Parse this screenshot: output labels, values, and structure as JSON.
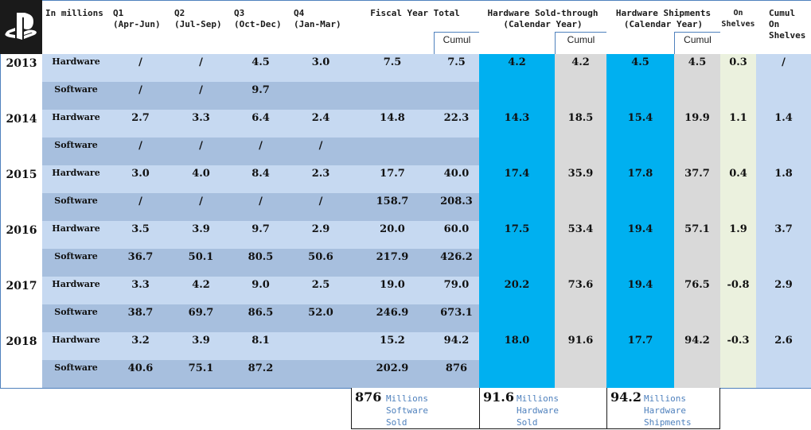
{
  "header": {
    "logo": "playstation-logo",
    "unit": "In millions",
    "q1": [
      "Q1",
      "(Apr-Jun)"
    ],
    "q2": [
      "Q2",
      "(Jul-Sep)"
    ],
    "q3": [
      "Q3",
      "(Oct-Dec)"
    ],
    "q4": [
      "Q4",
      "(Jan-Mar)"
    ],
    "fiscal_year_total": "Fiscal Year Total",
    "hw_sold_through": [
      "Hardware Sold-through",
      "(Calendar Year)"
    ],
    "hw_shipments": [
      "Hardware Shipments",
      "(Calendar Year)"
    ],
    "on_shelves": [
      "On",
      "Shelves"
    ],
    "cumul_on_shelves": [
      "Cumul",
      "On",
      "Shelves"
    ],
    "cumul": "Cumul"
  },
  "colors": {
    "hardware_row": "#c6d9f1",
    "software_row": "#a7bfde",
    "sold_through": "#00b0f0",
    "cumul_grey": "#d9d9d9",
    "on_shelves": "#ebf1de",
    "border": "#4f81bd"
  },
  "rows": [
    {
      "year": "2013",
      "hardware": {
        "label": "Hardware",
        "q1": "/",
        "q2": "/",
        "q3": "4.5",
        "q4": "3.0",
        "fy": "7.5",
        "fy_cumul": "7.5"
      },
      "software": {
        "label": "Software",
        "q1": "/",
        "q2": "/",
        "q3": "9.7",
        "q4": "",
        "fy": "",
        "fy_cumul": ""
      },
      "sold_through": "4.2",
      "sold_through_cumul": "4.2",
      "shipments": "4.5",
      "shipments_cumul": "4.5",
      "on_shelves": "0.3",
      "cumul_on_shelves": "/"
    },
    {
      "year": "2014",
      "hardware": {
        "label": "Hardware",
        "q1": "2.7",
        "q2": "3.3",
        "q3": "6.4",
        "q4": "2.4",
        "fy": "14.8",
        "fy_cumul": "22.3"
      },
      "software": {
        "label": "Software",
        "q1": "/",
        "q2": "/",
        "q3": "/",
        "q4": "/",
        "fy": "",
        "fy_cumul": ""
      },
      "sold_through": "14.3",
      "sold_through_cumul": "18.5",
      "shipments": "15.4",
      "shipments_cumul": "19.9",
      "on_shelves": "1.1",
      "cumul_on_shelves": "1.4"
    },
    {
      "year": "2015",
      "hardware": {
        "label": "Hardware",
        "q1": "3.0",
        "q2": "4.0",
        "q3": "8.4",
        "q4": "2.3",
        "fy": "17.7",
        "fy_cumul": "40.0"
      },
      "software": {
        "label": "Software",
        "q1": "/",
        "q2": "/",
        "q3": "/",
        "q4": "/",
        "fy": "158.7",
        "fy_cumul": "208.3"
      },
      "sold_through": "17.4",
      "sold_through_cumul": "35.9",
      "shipments": "17.8",
      "shipments_cumul": "37.7",
      "on_shelves": "0.4",
      "cumul_on_shelves": "1.8"
    },
    {
      "year": "2016",
      "hardware": {
        "label": "Hardware",
        "q1": "3.5",
        "q2": "3.9",
        "q3": "9.7",
        "q4": "2.9",
        "fy": "20.0",
        "fy_cumul": "60.0"
      },
      "software": {
        "label": "Software",
        "q1": "36.7",
        "q2": "50.1",
        "q3": "80.5",
        "q4": "50.6",
        "fy": "217.9",
        "fy_cumul": "426.2"
      },
      "sold_through": "17.5",
      "sold_through_cumul": "53.4",
      "shipments": "19.4",
      "shipments_cumul": "57.1",
      "on_shelves": "1.9",
      "cumul_on_shelves": "3.7"
    },
    {
      "year": "2017",
      "hardware": {
        "label": "Hardware",
        "q1": "3.3",
        "q2": "4.2",
        "q3": "9.0",
        "q4": "2.5",
        "fy": "19.0",
        "fy_cumul": "79.0"
      },
      "software": {
        "label": "Software",
        "q1": "38.7",
        "q2": "69.7",
        "q3": "86.5",
        "q4": "52.0",
        "fy": "246.9",
        "fy_cumul": "673.1"
      },
      "sold_through": "20.2",
      "sold_through_cumul": "73.6",
      "shipments": "19.4",
      "shipments_cumul": "76.5",
      "on_shelves": "-0.8",
      "cumul_on_shelves": "2.9"
    },
    {
      "year": "2018",
      "hardware": {
        "label": "Hardware",
        "q1": "3.2",
        "q2": "3.9",
        "q3": "8.1",
        "q4": "",
        "fy": "15.2",
        "fy_cumul": "94.2"
      },
      "software": {
        "label": "Software",
        "q1": "40.6",
        "q2": "75.1",
        "q3": "87.2",
        "q4": "",
        "fy": "202.9",
        "fy_cumul": "876"
      },
      "sold_through": "18.0",
      "sold_through_cumul": "91.6",
      "shipments": "17.7",
      "shipments_cumul": "94.2",
      "on_shelves": "-0.3",
      "cumul_on_shelves": "2.6"
    }
  ],
  "summary": [
    {
      "value": "876",
      "lines": [
        "Millions",
        "Software",
        "Sold"
      ]
    },
    {
      "value": "91.6",
      "lines": [
        "Millions",
        "Hardware",
        "Sold"
      ]
    },
    {
      "value": "94.2",
      "lines": [
        "Millions",
        "Hardware",
        "Shipments"
      ]
    }
  ]
}
